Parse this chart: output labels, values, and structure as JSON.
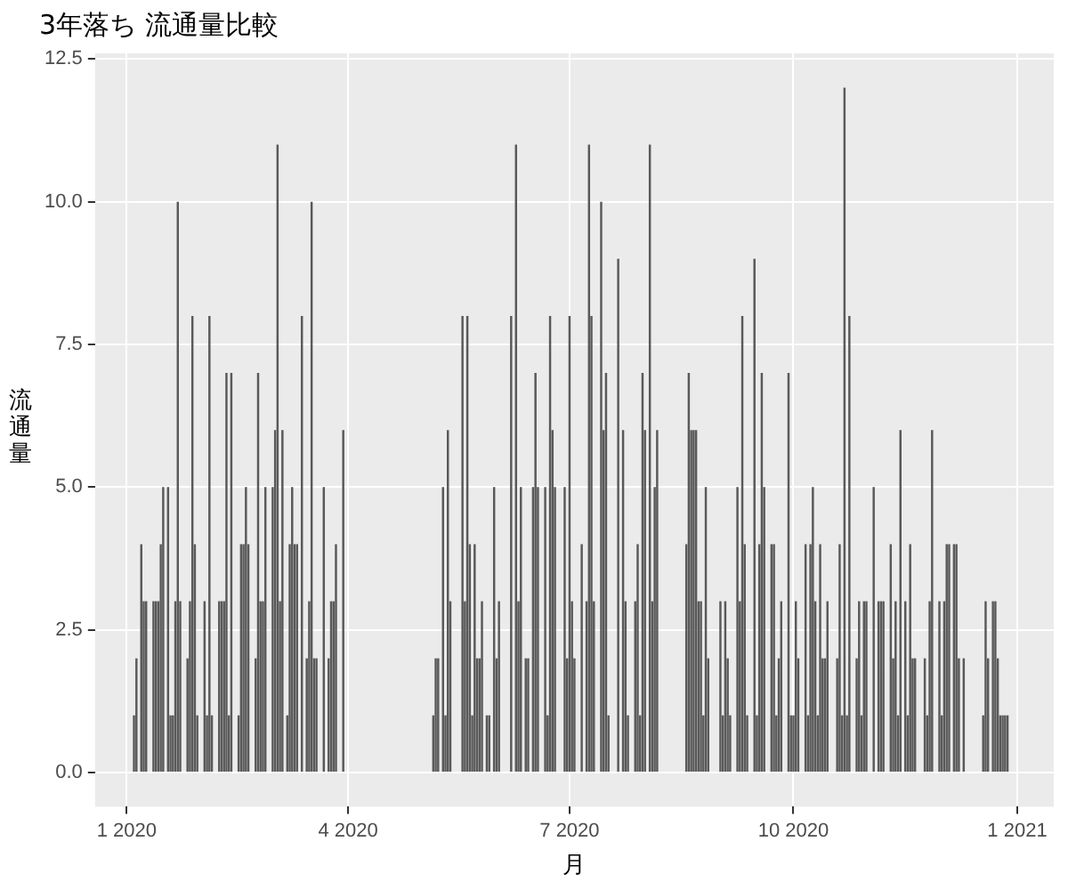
{
  "chart_data": {
    "type": "bar",
    "title": "3年落ち 流通量比較",
    "xlabel": "月",
    "ylabel": "流通量",
    "color": "#595959",
    "grid": true,
    "xlim": [
      "2019-12-19",
      "2021-01-16"
    ],
    "xticks": [
      {
        "value": "2020-01-01",
        "label": "1 2020"
      },
      {
        "value": "2020-04-01",
        "label": "4 2020"
      },
      {
        "value": "2020-07-01",
        "label": "7 2020"
      },
      {
        "value": "2020-10-01",
        "label": "10 2020"
      },
      {
        "value": "2021-01-01",
        "label": "1 2021"
      }
    ],
    "ylim": [
      -0.6,
      12.6
    ],
    "yticks": [
      {
        "value": 0,
        "label": "0.0"
      },
      {
        "value": 2.5,
        "label": "2.5"
      },
      {
        "value": 5,
        "label": "5.0"
      },
      {
        "value": 7.5,
        "label": "7.5"
      },
      {
        "value": 10,
        "label": "10.0"
      },
      {
        "value": 12.5,
        "label": "12.5"
      }
    ],
    "x": [
      "2020-01-04",
      "2020-01-05",
      "2020-01-07",
      "2020-01-08",
      "2020-01-09",
      "2020-01-12",
      "2020-01-13",
      "2020-01-14",
      "2020-01-15",
      "2020-01-16",
      "2020-01-18",
      "2020-01-19",
      "2020-01-20",
      "2020-01-21",
      "2020-01-22",
      "2020-01-23",
      "2020-01-26",
      "2020-01-27",
      "2020-01-28",
      "2020-01-29",
      "2020-01-30",
      "2020-02-02",
      "2020-02-03",
      "2020-02-04",
      "2020-02-05",
      "2020-02-08",
      "2020-02-09",
      "2020-02-10",
      "2020-02-11",
      "2020-02-12",
      "2020-02-13",
      "2020-02-16",
      "2020-02-17",
      "2020-02-18",
      "2020-02-19",
      "2020-02-20",
      "2020-02-23",
      "2020-02-24",
      "2020-02-25",
      "2020-02-26",
      "2020-02-27",
      "2020-03-01",
      "2020-03-02",
      "2020-03-03",
      "2020-03-04",
      "2020-03-05",
      "2020-03-07",
      "2020-03-08",
      "2020-03-09",
      "2020-03-10",
      "2020-03-11",
      "2020-03-13",
      "2020-03-15",
      "2020-03-16",
      "2020-03-17",
      "2020-03-18",
      "2020-03-19",
      "2020-03-22",
      "2020-03-24",
      "2020-03-25",
      "2020-03-26",
      "2020-03-27",
      "2020-03-30",
      "2020-05-06",
      "2020-05-07",
      "2020-05-08",
      "2020-05-10",
      "2020-05-11",
      "2020-05-12",
      "2020-05-13",
      "2020-05-18",
      "2020-05-19",
      "2020-05-20",
      "2020-05-21",
      "2020-05-22",
      "2020-05-23",
      "2020-05-24",
      "2020-05-25",
      "2020-05-26",
      "2020-05-28",
      "2020-05-29",
      "2020-05-31",
      "2020-06-01",
      "2020-06-02",
      "2020-06-07",
      "2020-06-09",
      "2020-06-10",
      "2020-06-11",
      "2020-06-13",
      "2020-06-14",
      "2020-06-16",
      "2020-06-17",
      "2020-06-18",
      "2020-06-21",
      "2020-06-22",
      "2020-06-23",
      "2020-06-24",
      "2020-06-25",
      "2020-06-29",
      "2020-06-30",
      "2020-07-01",
      "2020-07-02",
      "2020-07-03",
      "2020-07-06",
      "2020-07-08",
      "2020-07-09",
      "2020-07-10",
      "2020-07-11",
      "2020-07-14",
      "2020-07-15",
      "2020-07-16",
      "2020-07-17",
      "2020-07-21",
      "2020-07-23",
      "2020-07-24",
      "2020-07-25",
      "2020-07-28",
      "2020-07-29",
      "2020-07-30",
      "2020-07-31",
      "2020-08-01",
      "2020-08-03",
      "2020-08-04",
      "2020-08-05",
      "2020-08-06",
      "2020-08-18",
      "2020-08-19",
      "2020-08-20",
      "2020-08-21",
      "2020-08-22",
      "2020-08-23",
      "2020-08-24",
      "2020-08-25",
      "2020-08-26",
      "2020-08-27",
      "2020-09-01",
      "2020-09-02",
      "2020-09-03",
      "2020-09-04",
      "2020-09-05",
      "2020-09-08",
      "2020-09-09",
      "2020-09-10",
      "2020-09-11",
      "2020-09-12",
      "2020-09-15",
      "2020-09-16",
      "2020-09-17",
      "2020-09-18",
      "2020-09-19",
      "2020-09-22",
      "2020-09-23",
      "2020-09-24",
      "2020-09-25",
      "2020-09-26",
      "2020-09-29",
      "2020-09-30",
      "2020-10-01",
      "2020-10-02",
      "2020-10-03",
      "2020-10-06",
      "2020-10-07",
      "2020-10-08",
      "2020-10-09",
      "2020-10-10",
      "2020-10-11",
      "2020-10-12",
      "2020-10-13",
      "2020-10-14",
      "2020-10-15",
      "2020-10-19",
      "2020-10-20",
      "2020-10-21",
      "2020-10-22",
      "2020-10-23",
      "2020-10-24",
      "2020-10-27",
      "2020-10-28",
      "2020-10-29",
      "2020-10-30",
      "2020-10-31",
      "2020-11-03",
      "2020-11-05",
      "2020-11-06",
      "2020-11-07",
      "2020-11-10",
      "2020-11-11",
      "2020-11-12",
      "2020-11-13",
      "2020-11-14",
      "2020-11-16",
      "2020-11-17",
      "2020-11-18",
      "2020-11-19",
      "2020-11-20",
      "2020-11-24",
      "2020-11-25",
      "2020-11-26",
      "2020-11-27",
      "2020-11-30",
      "2020-12-01",
      "2020-12-02",
      "2020-12-03",
      "2020-12-04",
      "2020-12-06",
      "2020-12-07",
      "2020-12-08",
      "2020-12-10",
      "2020-12-18",
      "2020-12-19",
      "2020-12-20",
      "2020-12-22",
      "2020-12-23",
      "2020-12-24",
      "2020-12-25",
      "2020-12-26",
      "2020-12-27",
      "2020-12-28"
    ],
    "values": [
      1,
      2,
      4,
      3,
      3,
      3,
      3,
      3,
      4,
      5,
      5,
      1,
      1,
      3,
      10,
      3,
      2,
      3,
      8,
      4,
      1,
      3,
      1,
      8,
      1,
      3,
      3,
      3,
      7,
      1,
      7,
      1,
      4,
      4,
      5,
      4,
      2,
      7,
      3,
      3,
      5,
      5,
      6,
      11,
      3,
      6,
      1,
      4,
      5,
      4,
      4,
      8,
      2,
      3,
      10,
      2,
      2,
      5,
      2,
      3,
      3,
      4,
      6,
      1,
      2,
      2,
      5,
      1,
      6,
      3,
      8,
      3,
      8,
      4,
      1,
      4,
      2,
      2,
      3,
      1,
      1,
      5,
      2,
      3,
      8,
      11,
      3,
      5,
      2,
      2,
      5,
      7,
      5,
      5,
      1,
      8,
      6,
      5,
      5,
      2,
      8,
      3,
      2,
      4,
      3,
      11,
      8,
      3,
      10,
      6,
      7,
      1,
      9,
      6,
      3,
      1,
      3,
      4,
      1,
      7,
      6,
      11,
      3,
      5,
      6,
      4,
      7,
      6,
      6,
      6,
      3,
      3,
      1,
      5,
      2,
      3,
      1,
      3,
      2,
      1,
      5,
      3,
      8,
      4,
      1,
      9,
      1,
      4,
      7,
      5,
      4,
      4,
      1,
      2,
      3,
      7,
      1,
      1,
      3,
      2,
      4,
      1,
      4,
      5,
      3,
      1,
      4,
      2,
      2,
      3,
      2,
      4,
      1,
      12,
      1,
      8,
      2,
      3,
      1,
      3,
      3,
      5,
      3,
      3,
      3,
      4,
      2,
      3,
      1,
      6,
      3,
      1,
      4,
      2,
      2,
      2,
      1,
      3,
      6,
      3,
      1,
      3,
      4,
      4,
      4,
      4,
      2,
      2,
      1,
      3,
      2,
      3,
      3,
      2,
      1,
      1,
      1,
      1
    ]
  }
}
